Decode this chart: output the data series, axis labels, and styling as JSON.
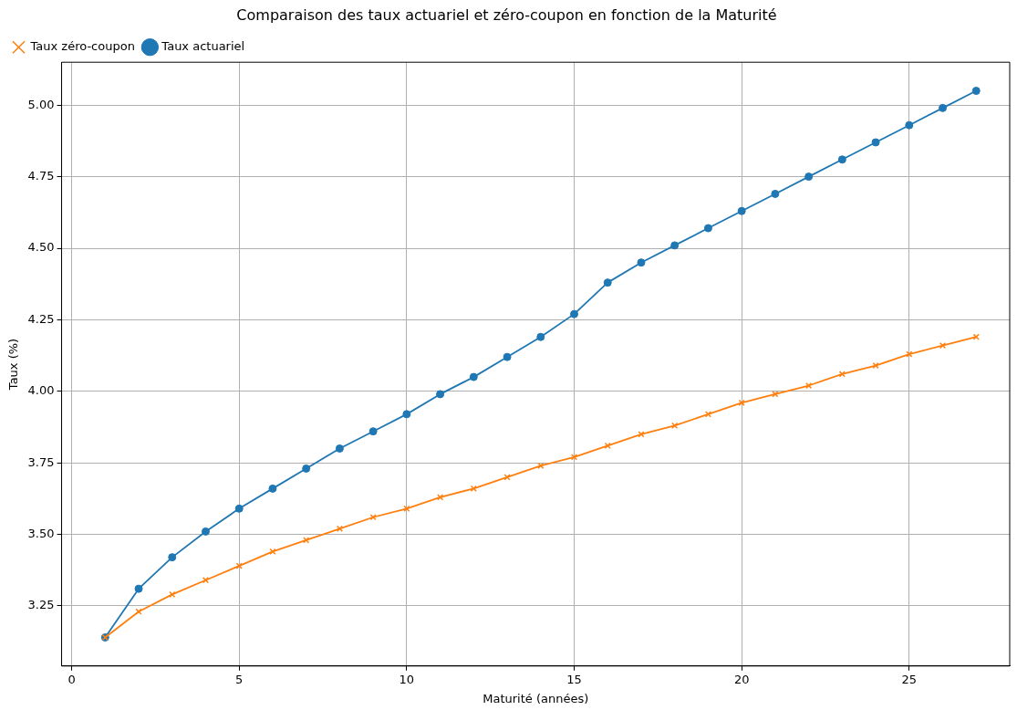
{
  "chart_data": {
    "type": "line",
    "title": "Comparaison des taux actuariel et zéro-coupon en fonction de la Maturité",
    "xlabel": "Maturité (années)",
    "ylabel": "Taux (%)",
    "x": [
      1,
      2,
      3,
      4,
      5,
      6,
      7,
      8,
      9,
      10,
      11,
      12,
      13,
      14,
      15,
      16,
      17,
      18,
      19,
      20,
      21,
      22,
      23,
      24,
      25,
      26,
      27
    ],
    "series": [
      {
        "name": "Taux actuariel",
        "color": "#1f77b4",
        "marker": "circle",
        "values": [
          3.14,
          3.31,
          3.42,
          3.51,
          3.59,
          3.66,
          3.73,
          3.8,
          3.86,
          3.92,
          3.99,
          4.05,
          4.12,
          4.19,
          4.27,
          4.38,
          4.45,
          4.51,
          4.57,
          4.63,
          4.69,
          4.75,
          4.81,
          4.87,
          4.93,
          4.99,
          5.05
        ]
      },
      {
        "name": "Taux zéro-coupon",
        "color": "#ff7f0e",
        "marker": "cross",
        "values": [
          3.14,
          3.23,
          3.29,
          3.34,
          3.39,
          3.44,
          3.48,
          3.52,
          3.56,
          3.59,
          3.63,
          3.66,
          3.7,
          3.74,
          3.77,
          3.81,
          3.85,
          3.88,
          3.92,
          3.96,
          3.99,
          4.02,
          4.06,
          4.09,
          4.13,
          4.16,
          4.19
        ]
      }
    ],
    "xlim": [
      -0.3,
      28.0
    ],
    "xticks": [
      0,
      5,
      10,
      15,
      20,
      25
    ],
    "ylim": [
      3.04,
      5.15
    ],
    "yticks": [
      {
        "value": 3.25,
        "label": "3.25"
      },
      {
        "value": 3.5,
        "label": "3.50"
      },
      {
        "value": 3.75,
        "label": "3.75"
      },
      {
        "value": 4,
        "label": "4.00"
      },
      {
        "value": 4.25,
        "label": "4.25"
      },
      {
        "value": 4.5,
        "label": "4.50"
      },
      {
        "value": 4.75,
        "label": "4.75"
      },
      {
        "value": 5,
        "label": "5.00"
      }
    ],
    "grid": true,
    "legend": "top left",
    "line_style": "solid"
  }
}
